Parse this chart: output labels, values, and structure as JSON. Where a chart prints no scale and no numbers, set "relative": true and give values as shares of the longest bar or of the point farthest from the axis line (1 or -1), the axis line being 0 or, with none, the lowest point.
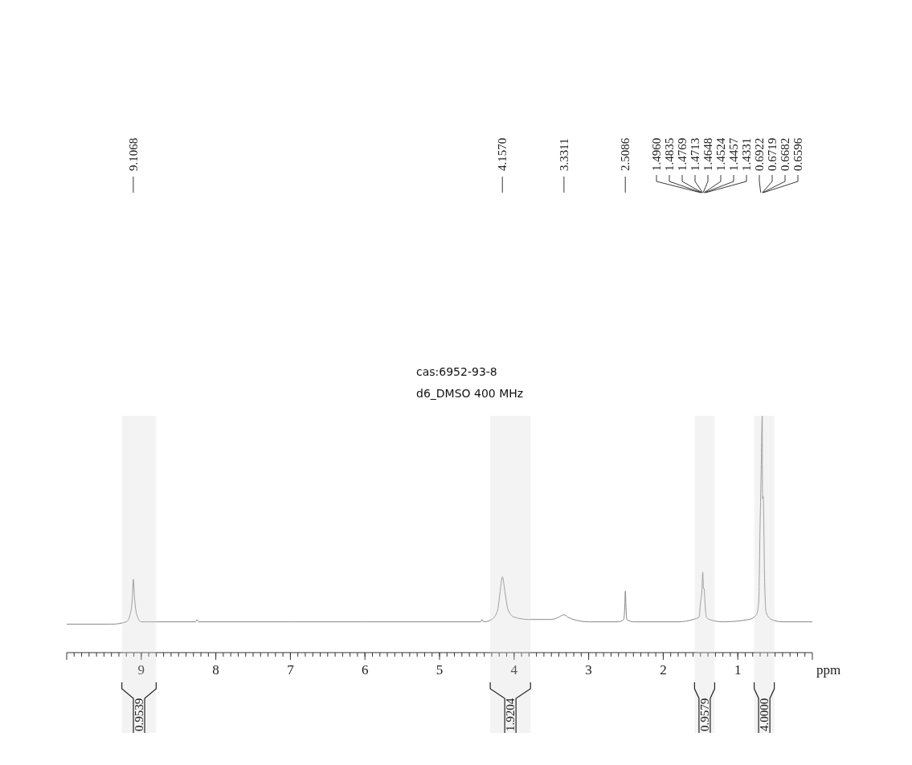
{
  "chart_data": {
    "type": "line",
    "relative": true,
    "xlabel": "ppm",
    "xlim": [
      10,
      0
    ],
    "xticks": [
      9,
      8,
      7,
      6,
      5,
      4,
      3,
      2,
      1
    ],
    "bands": [
      {
        "axis": "x",
        "from": 9.26,
        "to": 8.8,
        "label": "0.9539"
      },
      {
        "axis": "x",
        "from": 4.32,
        "to": 3.78,
        "label": "1.9204"
      },
      {
        "axis": "x",
        "from": 1.58,
        "to": 1.31,
        "label": "0.9579"
      },
      {
        "axis": "x",
        "from": 0.78,
        "to": 0.51,
        "label": "4.0000"
      }
    ],
    "series": [
      {
        "color": "#888888",
        "x": [
          10,
          9.4,
          9.2,
          9.15,
          9.12,
          9.1068,
          9.09,
          9.06,
          9.0,
          8.8,
          8.27,
          8.25,
          8.23,
          7.0,
          6.0,
          5.0,
          4.45,
          4.43,
          4.41,
          4.3,
          4.22,
          4.19,
          4.157,
          4.12,
          4.08,
          4.0,
          3.8,
          3.5,
          3.4,
          3.3311,
          3.28,
          3.2,
          3.0,
          2.6,
          2.53,
          2.515,
          2.5086,
          2.5,
          2.49,
          2.4,
          1.8,
          1.6,
          1.52,
          1.5,
          1.48,
          1.47,
          1.46,
          1.45,
          1.44,
          1.42,
          1.38,
          1.2,
          0.85,
          0.75,
          0.72,
          0.7,
          0.69,
          0.6719,
          0.6682,
          0.6596,
          0.64,
          0.62,
          0.55,
          0.4,
          0
        ],
        "values": [
          0.12,
          0.12,
          0.13,
          0.16,
          0.23,
          0.31,
          0.23,
          0.16,
          0.13,
          0.13,
          0.13,
          0.14,
          0.13,
          0.13,
          0.13,
          0.13,
          0.13,
          0.14,
          0.13,
          0.14,
          0.18,
          0.25,
          0.32,
          0.25,
          0.18,
          0.15,
          0.14,
          0.14,
          0.15,
          0.16,
          0.15,
          0.14,
          0.13,
          0.13,
          0.14,
          0.2,
          0.26,
          0.2,
          0.14,
          0.13,
          0.13,
          0.14,
          0.15,
          0.21,
          0.27,
          0.34,
          0.27,
          0.27,
          0.21,
          0.15,
          0.14,
          0.13,
          0.14,
          0.16,
          0.21,
          0.56,
          0.71,
          1,
          0.65,
          0.66,
          0.3,
          0.17,
          0.14,
          0.13,
          0.13
        ]
      }
    ],
    "annotations": [
      {
        "text": "9.1068",
        "x": 9.1068
      },
      {
        "text": "4.1570",
        "x": 4.157
      },
      {
        "text": "3.3311",
        "x": 3.3311
      },
      {
        "text": "2.5086",
        "x": 2.5086
      },
      {
        "text": "1.4960",
        "x": 1.496
      },
      {
        "text": "1.4835",
        "x": 1.4835
      },
      {
        "text": "1.4769",
        "x": 1.4769
      },
      {
        "text": "1.4713",
        "x": 1.4713
      },
      {
        "text": "1.4648",
        "x": 1.4648
      },
      {
        "text": "1.4524",
        "x": 1.4524
      },
      {
        "text": "1.4457",
        "x": 1.4457
      },
      {
        "text": "1.4331",
        "x": 1.4331
      },
      {
        "text": "0.6922",
        "x": 0.6922
      },
      {
        "text": "0.6719",
        "x": 0.6719
      },
      {
        "text": "0.6682",
        "x": 0.6682
      },
      {
        "text": "0.6596",
        "x": 0.6596
      },
      "cas:6952-93-8",
      "d6_DMSO  400 MHz"
    ]
  }
}
